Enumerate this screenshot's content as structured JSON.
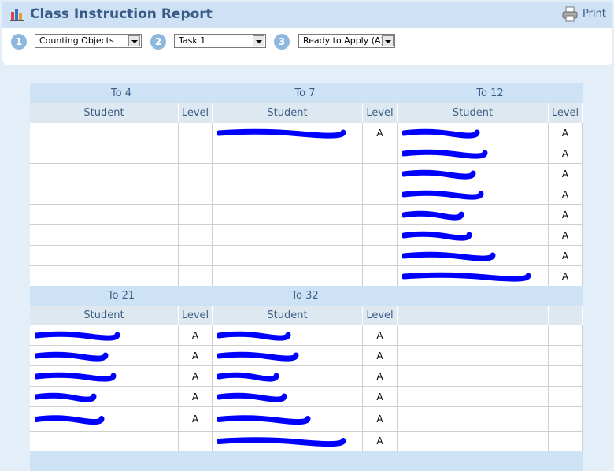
{
  "header": {
    "title": "Class Instruction Report",
    "print": "Print"
  },
  "controls": [
    {
      "step": "1",
      "value": "Counting Objects"
    },
    {
      "step": "2",
      "value": "Task 1"
    },
    {
      "step": "3",
      "value": "Ready to Apply (A)"
    }
  ],
  "columns": [
    "Student",
    "Level"
  ],
  "groups": [
    {
      "title": "To 4",
      "rows": []
    },
    {
      "title": "To 7",
      "rows": [
        {
          "level": "A"
        }
      ]
    },
    {
      "title": "To 12",
      "rows": [
        {
          "level": "A"
        },
        {
          "level": "A"
        },
        {
          "level": "A"
        },
        {
          "level": "A"
        },
        {
          "level": "A"
        },
        {
          "level": "A"
        },
        {
          "level": "A"
        },
        {
          "level": "A"
        }
      ]
    },
    {
      "title": "To 21",
      "rows": [
        {
          "level": "A"
        },
        {
          "level": "A"
        },
        {
          "level": "A"
        },
        {
          "level": "A"
        },
        {
          "level": "A"
        }
      ]
    },
    {
      "title": "To 32",
      "rows": [
        {
          "level": "A"
        },
        {
          "level": "A"
        },
        {
          "level": "A"
        },
        {
          "level": "A"
        },
        {
          "level": "A"
        },
        {
          "level": "A"
        }
      ]
    }
  ]
}
